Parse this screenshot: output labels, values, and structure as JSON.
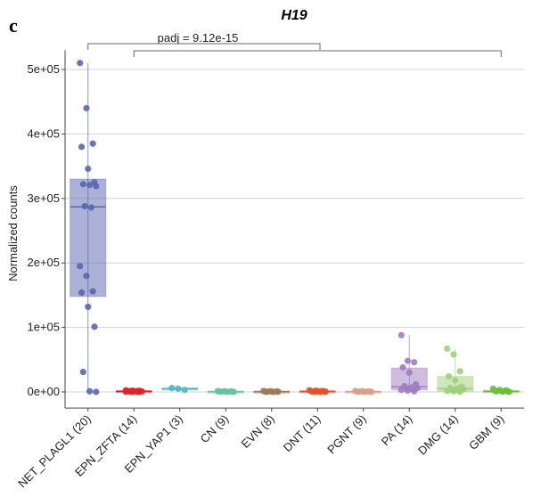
{
  "panel_letter": "c",
  "chart_data": {
    "type": "box",
    "title": "H19",
    "xlabel": "",
    "ylabel": "Normalized counts",
    "ylim": [
      -25000,
      530000
    ],
    "yticks": [
      0,
      100000,
      200000,
      300000,
      400000,
      500000
    ],
    "ytick_labels": [
      "0e+00",
      "1e+05",
      "2e+05",
      "3e+05",
      "4e+05",
      "5e+05"
    ],
    "grid": true,
    "categories": [
      "NET_PLAGL1 (20)",
      "EPN_ZFTA (14)",
      "EPN_YAP1 (3)",
      "CN (9)",
      "EVN (8)",
      "DNT (11)",
      "PGNT (9)",
      "PA (14)",
      "DMG (14)",
      "GBM (9)"
    ],
    "colors": [
      "#5a66b0",
      "#d62728",
      "#4fb8c0",
      "#66c2a5",
      "#a0785a",
      "#e0532b",
      "#d9a08a",
      "#a07cc0",
      "#9fd07a",
      "#6bbf3a"
    ],
    "boxes": [
      {
        "q1": 148000,
        "median": 287000,
        "q3": 330000,
        "whisker_low": 0,
        "whisker_high": 510000
      },
      {
        "q1": 0,
        "median": 1000,
        "q3": 2000,
        "whisker_low": 0,
        "whisker_high": 2500
      },
      {
        "q1": 3000,
        "median": 5000,
        "q3": 6000,
        "whisker_low": 3000,
        "whisker_high": 6000
      },
      {
        "q1": 0,
        "median": 500,
        "q3": 1000,
        "whisker_low": 0,
        "whisker_high": 1500
      },
      {
        "q1": 0,
        "median": 500,
        "q3": 1000,
        "whisker_low": 0,
        "whisker_high": 1500
      },
      {
        "q1": 0,
        "median": 1000,
        "q3": 1500,
        "whisker_low": 0,
        "whisker_high": 2500
      },
      {
        "q1": 0,
        "median": 500,
        "q3": 1000,
        "whisker_low": 0,
        "whisker_high": 1500
      },
      {
        "q1": 3000,
        "median": 8000,
        "q3": 37000,
        "whisker_low": 1000,
        "whisker_high": 88000
      },
      {
        "q1": 1000,
        "median": 5000,
        "q3": 24000,
        "whisker_low": 0,
        "whisker_high": 67000
      },
      {
        "q1": 0,
        "median": 1000,
        "q3": 2000,
        "whisker_low": 0,
        "whisker_high": 5000
      }
    ],
    "points": [
      [
        510000,
        440000,
        385000,
        380000,
        346000,
        325000,
        322000,
        321000,
        319000,
        288000,
        286000,
        195000,
        180000,
        156000,
        154000,
        132000,
        101000,
        31000,
        1000,
        0
      ],
      [
        2500,
        2000,
        1800,
        1500,
        1200,
        1000,
        900,
        800,
        600,
        500,
        400,
        300,
        200,
        0
      ],
      [
        6000,
        5000,
        3000
      ],
      [
        1500,
        1000,
        800,
        600,
        500,
        300,
        200,
        100,
        0
      ],
      [
        1500,
        1000,
        800,
        600,
        400,
        300,
        100,
        0
      ],
      [
        2500,
        2000,
        1500,
        1200,
        1000,
        800,
        600,
        400,
        300,
        100,
        0
      ],
      [
        1500,
        1000,
        800,
        600,
        500,
        300,
        200,
        100,
        0
      ],
      [
        88000,
        48000,
        46000,
        38000,
        30000,
        12000,
        9000,
        7000,
        6000,
        5000,
        4000,
        3000,
        2000,
        1000
      ],
      [
        67000,
        58000,
        32000,
        24000,
        18000,
        8000,
        6000,
        5000,
        4000,
        3000,
        2000,
        1500,
        1000,
        0
      ],
      [
        5000,
        3000,
        2500,
        2000,
        1500,
        1000,
        800,
        500,
        0
      ]
    ],
    "significance": {
      "label": "padj = 9.12e-15",
      "from_category": 0,
      "to_category": 9
    }
  }
}
